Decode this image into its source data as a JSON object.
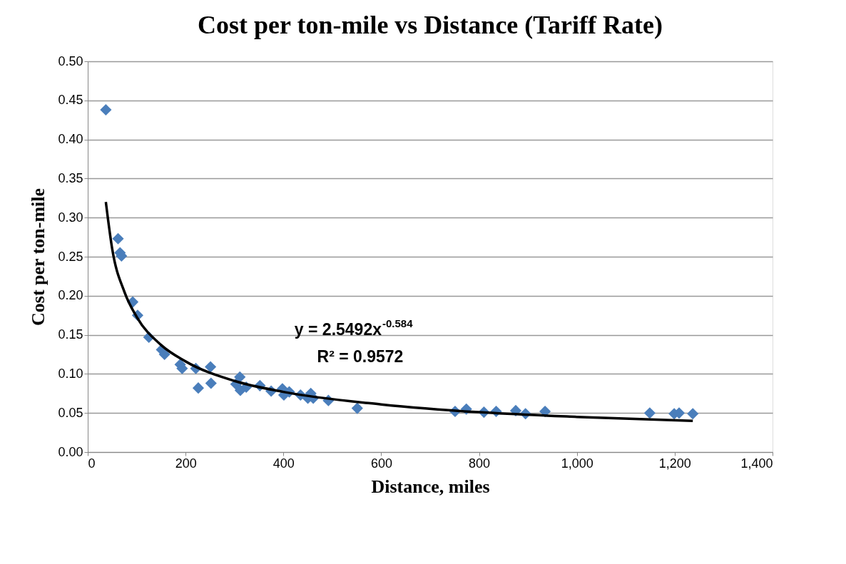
{
  "chart_data": {
    "type": "scatter",
    "title": "Cost per ton-mile vs Distance (Tariff Rate)",
    "xlabel": "Distance, miles",
    "ylabel": "Cost per ton-mile",
    "xlim": [
      0,
      1400
    ],
    "xticks": [
      0,
      200,
      400,
      600,
      800,
      {
        "value": 1000,
        "label": "1,000"
      },
      {
        "value": 1200,
        "label": "1,200"
      },
      {
        "value": 1400,
        "label": "1,400"
      }
    ],
    "ylim": [
      0,
      0.5
    ],
    "yticks": [
      {
        "value": 0,
        "label": "0.00"
      },
      {
        "value": 0.05,
        "label": "0.05"
      },
      {
        "value": 0.1,
        "label": "0.10"
      },
      {
        "value": 0.15,
        "label": "0.15"
      },
      {
        "value": 0.2,
        "label": "0.20"
      },
      {
        "value": 0.25,
        "label": "0.25"
      },
      {
        "value": 0.3,
        "label": "0.30"
      },
      {
        "value": 0.35,
        "label": "0.35"
      },
      {
        "value": 0.4,
        "label": "0.40"
      },
      {
        "value": 0.45,
        "label": "0.45"
      },
      {
        "value": 0.5,
        "label": "0.50"
      }
    ],
    "grid": "y",
    "marker": "diamond",
    "annotations": [
      "y = 2.5492x$^{-0.584}$",
      "R² = 0.9572"
    ],
    "series": [
      {
        "color": "#4a7ebb",
        "x": [
          37,
          62,
          66,
          69,
          92,
          102,
          125,
          151,
          157,
          189,
          193,
          221,
          226,
          251,
          252,
          303,
          311,
          312,
          324,
          352,
          375,
          398,
          401,
          412,
          435,
          450,
          456,
          461,
          492,
          551,
          751,
          774,
          810,
          835,
          875,
          895,
          935,
          1149,
          1199,
          1209,
          1237
        ],
        "values": [
          0.438,
          0.273,
          0.255,
          0.251,
          0.192,
          0.175,
          0.147,
          0.131,
          0.125,
          0.112,
          0.107,
          0.107,
          0.082,
          0.109,
          0.088,
          0.087,
          0.096,
          0.079,
          0.083,
          0.085,
          0.078,
          0.081,
          0.073,
          0.077,
          0.073,
          0.069,
          0.075,
          0.069,
          0.066,
          0.056,
          0.052,
          0.055,
          0.051,
          0.052,
          0.053,
          0.049,
          0.052,
          0.05,
          0.049,
          0.05,
          0.049
        ]
      },
      {
        "type": "line",
        "color": "#000000",
        "marker": "none",
        "x": [
          37,
          50,
          75,
          100,
          150,
          200,
          300,
          400,
          600,
          800,
          1000,
          1237
        ],
        "values": [
          0.32,
          0.26,
          0.205,
          0.173,
          0.137,
          0.116,
          0.091,
          0.077,
          0.061,
          0.051,
          0.045,
          0.04
        ]
      }
    ]
  }
}
